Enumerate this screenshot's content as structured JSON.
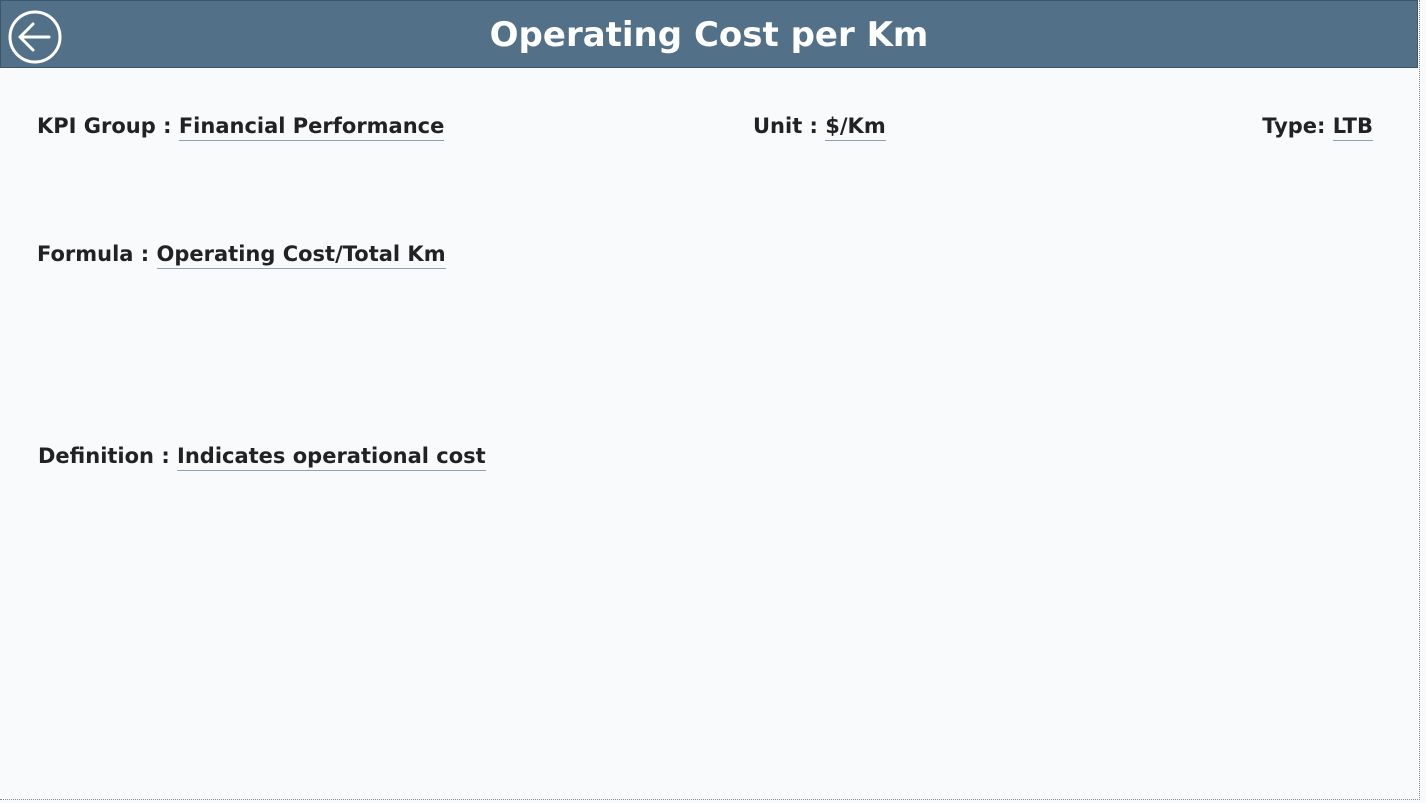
{
  "header": {
    "title": "Operating Cost per Km"
  },
  "fields": [
    {
      "label": "KPI Group :",
      "value": "Financial Performance"
    },
    {
      "label": "Unit :",
      "value": "$/Km"
    },
    {
      "label": "Type:",
      "value": "LTB"
    },
    {
      "label": "Formula :",
      "value": "Operating Cost/Total Km"
    },
    {
      "label": "Definition :",
      "value": "Indicates operational cost"
    }
  ]
}
